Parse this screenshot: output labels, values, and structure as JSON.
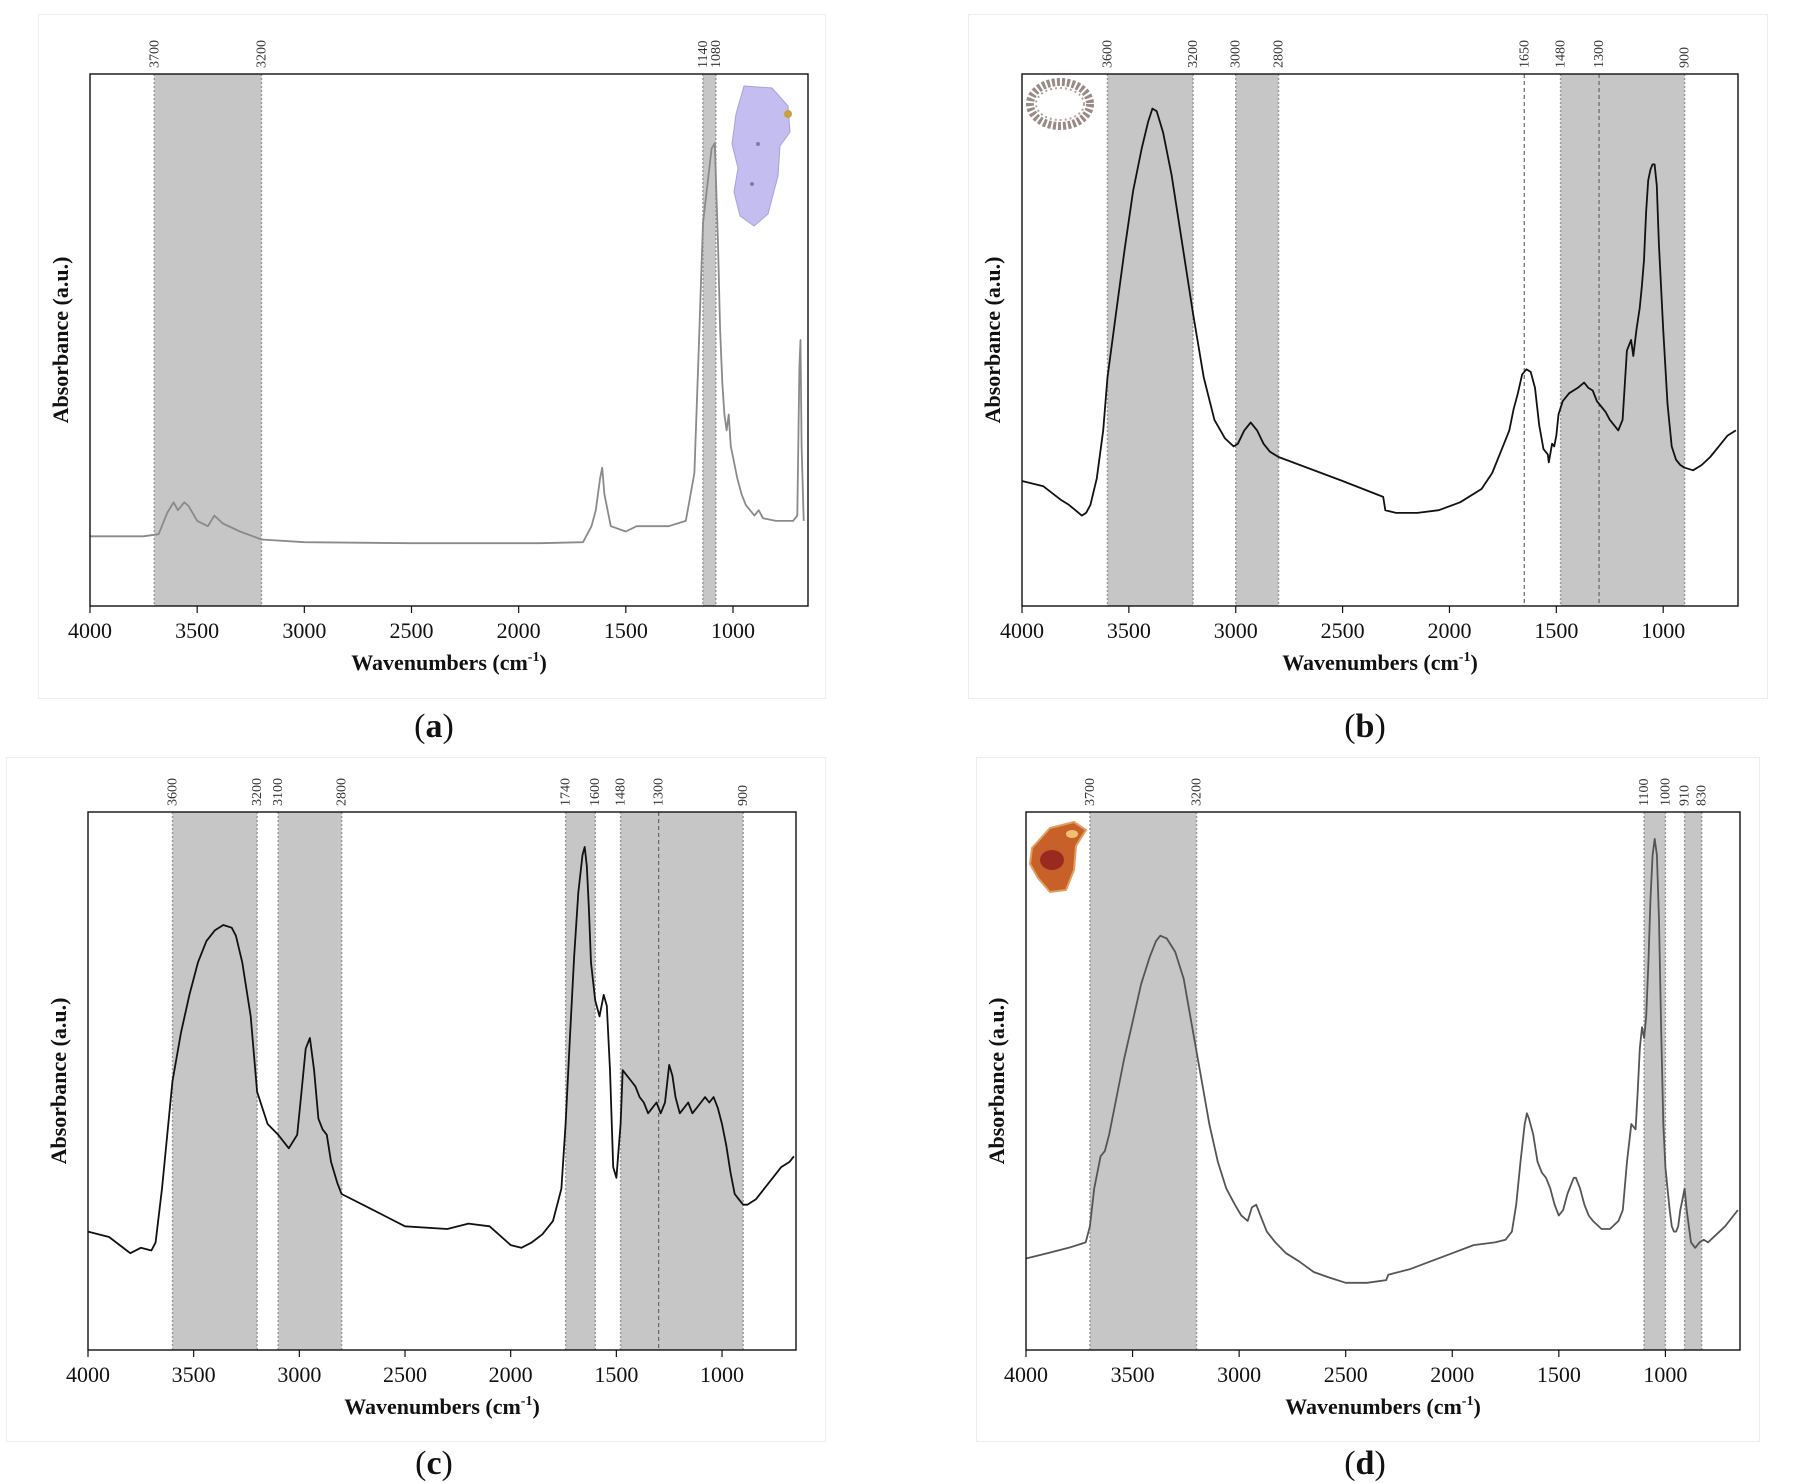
{
  "figure": {
    "captions": [
      {
        "open": "(",
        "letter": "a",
        "close": ")"
      },
      {
        "open": "(",
        "letter": "b",
        "close": ")"
      },
      {
        "open": "(",
        "letter": "c",
        "close": ")"
      },
      {
        "open": "(",
        "letter": "d",
        "close": ")"
      }
    ]
  },
  "chart_data": [
    {
      "type": "line",
      "panel": "a",
      "xlabel_main": "Wavenumbers (cm",
      "xlabel_sup": "-1",
      "xlabel_close": ")",
      "ylabel": "Absorbance (a.u.)",
      "xlim": [
        4000,
        650
      ],
      "x_reversed": true,
      "ylim": [
        0,
        1
      ],
      "xticks": [
        4000,
        3500,
        3000,
        2500,
        2000,
        1500,
        1000
      ],
      "bands": [
        [
          3700,
          3200
        ],
        [
          1140,
          1080
        ]
      ],
      "band_labels": [
        "3700",
        "3200",
        "1140",
        "1080"
      ],
      "dashed_lines": [],
      "inset_icon": "purple-mineral-sample-icon",
      "line_color": "#8a8a8a",
      "series": [
        {
          "x": [
            4000,
            3750,
            3680,
            3640,
            3610,
            3590,
            3560,
            3540,
            3500,
            3450,
            3420,
            3380,
            3300,
            3200,
            3000,
            2500,
            2100,
            1900,
            1700,
            1660,
            1640,
            1620,
            1610,
            1600,
            1570,
            1500,
            1450,
            1300,
            1220,
            1180,
            1160,
            1140,
            1120,
            1100,
            1085,
            1070,
            1060,
            1050,
            1040,
            1030,
            1020,
            1010,
            1000,
            980,
            960,
            940,
            900,
            880,
            860,
            800,
            720,
            700,
            690,
            685,
            680,
            670
          ],
          "y": [
            0.131,
            0.131,
            0.135,
            0.175,
            0.195,
            0.18,
            0.195,
            0.188,
            0.16,
            0.15,
            0.17,
            0.155,
            0.14,
            0.125,
            0.12,
            0.118,
            0.118,
            0.118,
            0.12,
            0.15,
            0.18,
            0.24,
            0.26,
            0.21,
            0.15,
            0.14,
            0.15,
            0.15,
            0.16,
            0.25,
            0.48,
            0.72,
            0.79,
            0.86,
            0.87,
            0.68,
            0.52,
            0.42,
            0.36,
            0.33,
            0.36,
            0.3,
            0.28,
            0.24,
            0.21,
            0.19,
            0.17,
            0.18,
            0.165,
            0.16,
            0.16,
            0.17,
            0.45,
            0.5,
            0.3,
            0.16
          ]
        }
      ]
    },
    {
      "type": "line",
      "panel": "b",
      "xlabel_main": "Wavenumbers (cm",
      "xlabel_sup": "-1",
      "xlabel_close": ")",
      "ylabel": "Absorbance (a.u.)",
      "xlim": [
        4000,
        650
      ],
      "x_reversed": true,
      "ylim": [
        0,
        1
      ],
      "xticks": [
        4000,
        3500,
        3000,
        2500,
        2000,
        1500,
        1000
      ],
      "bands": [
        [
          3600,
          3200
        ],
        [
          3000,
          2800
        ],
        [
          1480,
          900
        ]
      ],
      "band_labels": [
        "3600",
        "3200",
        "3000",
        "2800",
        "1650",
        "1480",
        "1300",
        "900"
      ],
      "dashed_lines": [
        1650,
        1300
      ],
      "inset_icon": "ring-sample-icon",
      "line_color": "#111111",
      "series": [
        {
          "x": [
            4000,
            3900,
            3820,
            3780,
            3750,
            3720,
            3700,
            3680,
            3650,
            3620,
            3600,
            3560,
            3520,
            3480,
            3440,
            3410,
            3390,
            3370,
            3340,
            3300,
            3250,
            3200,
            3150,
            3100,
            3050,
            3010,
            2990,
            2960,
            2930,
            2900,
            2870,
            2840,
            2800,
            2700,
            2500,
            2310,
            2300,
            2250,
            2150,
            2050,
            1950,
            1850,
            1800,
            1750,
            1720,
            1700,
            1680,
            1660,
            1640,
            1620,
            1600,
            1580,
            1560,
            1540,
            1535,
            1520,
            1510,
            1500,
            1490,
            1470,
            1440,
            1400,
            1370,
            1350,
            1330,
            1310,
            1290,
            1270,
            1250,
            1230,
            1210,
            1190,
            1170,
            1150,
            1140,
            1125,
            1110,
            1100,
            1090,
            1080,
            1070,
            1060,
            1050,
            1040,
            1030,
            1020,
            1000,
            980,
            960,
            940,
            920,
            900,
            860,
            820,
            780,
            740,
            700,
            660
          ],
          "y": [
            0.235,
            0.225,
            0.2,
            0.19,
            0.18,
            0.17,
            0.175,
            0.19,
            0.24,
            0.33,
            0.43,
            0.55,
            0.67,
            0.78,
            0.86,
            0.91,
            0.935,
            0.93,
            0.89,
            0.81,
            0.68,
            0.55,
            0.43,
            0.35,
            0.315,
            0.3,
            0.305,
            0.33,
            0.345,
            0.33,
            0.305,
            0.29,
            0.28,
            0.265,
            0.235,
            0.205,
            0.18,
            0.175,
            0.175,
            0.18,
            0.195,
            0.22,
            0.25,
            0.3,
            0.33,
            0.37,
            0.4,
            0.435,
            0.445,
            0.44,
            0.41,
            0.34,
            0.295,
            0.285,
            0.27,
            0.305,
            0.3,
            0.32,
            0.36,
            0.385,
            0.4,
            0.41,
            0.42,
            0.41,
            0.405,
            0.385,
            0.375,
            0.365,
            0.35,
            0.34,
            0.33,
            0.35,
            0.48,
            0.5,
            0.47,
            0.52,
            0.56,
            0.6,
            0.65,
            0.74,
            0.8,
            0.82,
            0.83,
            0.83,
            0.79,
            0.68,
            0.52,
            0.38,
            0.3,
            0.275,
            0.265,
            0.26,
            0.255,
            0.265,
            0.28,
            0.3,
            0.32,
            0.33
          ]
        }
      ]
    },
    {
      "type": "line",
      "panel": "c",
      "xlabel_main": "Wavenumbers (cm",
      "xlabel_sup": "-1",
      "xlabel_close": ")",
      "ylabel": "Absorbance (a.u.)",
      "xlim": [
        4000,
        650
      ],
      "x_reversed": true,
      "ylim": [
        0,
        1
      ],
      "xticks": [
        4000,
        3500,
        3000,
        2500,
        2000,
        1500,
        1000
      ],
      "bands": [
        [
          3600,
          3200
        ],
        [
          3100,
          2800
        ],
        [
          1740,
          1600
        ],
        [
          1480,
          900
        ]
      ],
      "band_labels": [
        "3600",
        "3200",
        "3100",
        "2800",
        "1740",
        "1600",
        "1480",
        "1300",
        "900"
      ],
      "dashed_lines": [
        1300
      ],
      "inset_icon": "",
      "line_color": "#111111",
      "series": [
        {
          "x": [
            4000,
            3900,
            3850,
            3800,
            3750,
            3700,
            3680,
            3650,
            3620,
            3600,
            3560,
            3520,
            3480,
            3440,
            3400,
            3360,
            3320,
            3300,
            3270,
            3230,
            3200,
            3150,
            3100,
            3050,
            3010,
            2990,
            2970,
            2950,
            2930,
            2910,
            2890,
            2870,
            2850,
            2820,
            2800,
            2700,
            2600,
            2500,
            2300,
            2200,
            2100,
            2000,
            1950,
            1900,
            1850,
            1800,
            1760,
            1740,
            1720,
            1700,
            1680,
            1660,
            1650,
            1640,
            1630,
            1620,
            1600,
            1580,
            1560,
            1545,
            1530,
            1515,
            1500,
            1480,
            1470,
            1450,
            1430,
            1410,
            1390,
            1370,
            1350,
            1330,
            1310,
            1290,
            1270,
            1250,
            1235,
            1220,
            1200,
            1180,
            1160,
            1140,
            1120,
            1100,
            1080,
            1060,
            1040,
            1020,
            1000,
            980,
            960,
            940,
            920,
            900,
            880,
            860,
            840,
            800,
            760,
            720,
            680,
            660
          ],
          "y": [
            0.22,
            0.21,
            0.195,
            0.18,
            0.19,
            0.185,
            0.2,
            0.3,
            0.42,
            0.5,
            0.59,
            0.66,
            0.72,
            0.76,
            0.78,
            0.79,
            0.785,
            0.77,
            0.72,
            0.62,
            0.48,
            0.42,
            0.4,
            0.375,
            0.4,
            0.48,
            0.56,
            0.58,
            0.52,
            0.43,
            0.41,
            0.4,
            0.35,
            0.31,
            0.29,
            0.27,
            0.25,
            0.23,
            0.225,
            0.235,
            0.23,
            0.195,
            0.19,
            0.2,
            0.215,
            0.24,
            0.3,
            0.42,
            0.58,
            0.73,
            0.85,
            0.92,
            0.935,
            0.9,
            0.82,
            0.72,
            0.65,
            0.62,
            0.66,
            0.64,
            0.52,
            0.34,
            0.32,
            0.42,
            0.52,
            0.51,
            0.5,
            0.49,
            0.47,
            0.46,
            0.44,
            0.45,
            0.46,
            0.44,
            0.46,
            0.53,
            0.51,
            0.47,
            0.44,
            0.45,
            0.46,
            0.44,
            0.45,
            0.46,
            0.47,
            0.46,
            0.47,
            0.45,
            0.42,
            0.38,
            0.33,
            0.29,
            0.28,
            0.27,
            0.27,
            0.275,
            0.28,
            0.3,
            0.32,
            0.34,
            0.35,
            0.36
          ]
        }
      ]
    },
    {
      "type": "line",
      "panel": "d",
      "xlabel_main": "Wavenumbers (cm",
      "xlabel_sup": "-1",
      "xlabel_close": ")",
      "ylabel": "Absorbance (a.u.)",
      "xlim": [
        4000,
        650
      ],
      "x_reversed": true,
      "ylim": [
        0,
        1
      ],
      "xticks": [
        4000,
        3500,
        3000,
        2500,
        2000,
        1500,
        1000
      ],
      "bands": [
        [
          3700,
          3200
        ],
        [
          1100,
          1000
        ],
        [
          910,
          830
        ]
      ],
      "band_labels": [
        "3700",
        "3200",
        "1100",
        "1000",
        "910",
        "830"
      ],
      "dashed_lines": [],
      "inset_icon": "orange-resin-sample-icon",
      "line_color": "#555555",
      "series": [
        {
          "x": [
            4000,
            3900,
            3800,
            3760,
            3720,
            3700,
            3680,
            3650,
            3630,
            3610,
            3580,
            3540,
            3500,
            3460,
            3420,
            3390,
            3370,
            3340,
            3300,
            3260,
            3220,
            3180,
            3140,
            3100,
            3060,
            3020,
            2990,
            2960,
            2940,
            2920,
            2900,
            2870,
            2830,
            2780,
            2720,
            2650,
            2580,
            2500,
            2400,
            2310,
            2300,
            2200,
            2100,
            2000,
            1900,
            1800,
            1750,
            1720,
            1700,
            1680,
            1660,
            1650,
            1640,
            1620,
            1600,
            1580,
            1560,
            1540,
            1520,
            1500,
            1480,
            1460,
            1440,
            1430,
            1420,
            1400,
            1380,
            1360,
            1340,
            1300,
            1260,
            1220,
            1200,
            1180,
            1160,
            1140,
            1130,
            1120,
            1110,
            1100,
            1090,
            1080,
            1070,
            1060,
            1050,
            1040,
            1030,
            1020,
            1010,
            1000,
            990,
            980,
            970,
            960,
            950,
            940,
            930,
            920,
            910,
            900,
            880,
            860,
            840,
            820,
            800,
            760,
            720,
            680,
            660
          ],
          "y": [
            0.17,
            0.18,
            0.19,
            0.195,
            0.2,
            0.23,
            0.3,
            0.36,
            0.37,
            0.4,
            0.46,
            0.54,
            0.61,
            0.68,
            0.73,
            0.76,
            0.77,
            0.765,
            0.74,
            0.69,
            0.6,
            0.51,
            0.42,
            0.35,
            0.3,
            0.27,
            0.25,
            0.24,
            0.265,
            0.27,
            0.25,
            0.22,
            0.2,
            0.18,
            0.165,
            0.145,
            0.135,
            0.125,
            0.125,
            0.13,
            0.14,
            0.15,
            0.165,
            0.18,
            0.195,
            0.2,
            0.205,
            0.22,
            0.27,
            0.35,
            0.42,
            0.44,
            0.43,
            0.4,
            0.35,
            0.33,
            0.32,
            0.3,
            0.27,
            0.25,
            0.26,
            0.29,
            0.31,
            0.32,
            0.32,
            0.3,
            0.27,
            0.25,
            0.24,
            0.225,
            0.225,
            0.24,
            0.26,
            0.35,
            0.42,
            0.41,
            0.48,
            0.56,
            0.6,
            0.58,
            0.62,
            0.72,
            0.84,
            0.92,
            0.95,
            0.92,
            0.8,
            0.6,
            0.42,
            0.34,
            0.3,
            0.26,
            0.23,
            0.22,
            0.22,
            0.23,
            0.26,
            0.28,
            0.3,
            0.26,
            0.2,
            0.19,
            0.2,
            0.205,
            0.2,
            0.215,
            0.23,
            0.25,
            0.26
          ]
        }
      ]
    }
  ]
}
